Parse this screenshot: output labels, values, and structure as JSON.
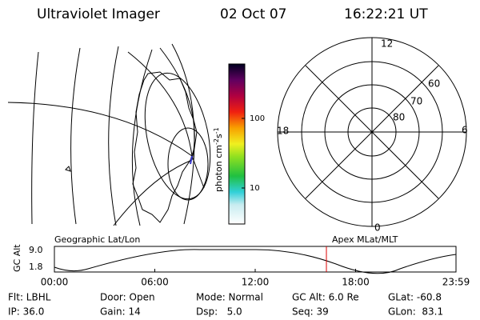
{
  "header": {
    "title": "Ultraviolet Imager",
    "date": "02 Oct 07",
    "time": "16:22:21 UT"
  },
  "colorbar": {
    "label": [
      "photon cm",
      "-2",
      "s",
      "-1"
    ],
    "ticks": [
      "100",
      "10"
    ]
  },
  "polar": {
    "mlt_labels": [
      "12",
      "18",
      "6",
      "0"
    ],
    "lat_labels": [
      "60",
      "70",
      "80"
    ]
  },
  "orbit": {
    "left_title": "Geographic Lat/Lon",
    "right_title": "Apex MLat/MLT",
    "y_label": "GC Alt",
    "y_ticks": [
      "9.0",
      "1.8"
    ],
    "x_ticks": [
      "00:00",
      "06:00",
      "12:00",
      "18:00",
      "23:59"
    ]
  },
  "info": {
    "rows": [
      [
        "Flt: LBHL",
        "Door: Open",
        "Mode: Normal",
        "GC Alt: 6.0 Re",
        "GLat: -60.8"
      ],
      [
        "IP: 36.0",
        "Gain: 14",
        "Dsp:   5.0",
        "Seq: 39",
        "GLon:  83.1"
      ]
    ]
  }
}
